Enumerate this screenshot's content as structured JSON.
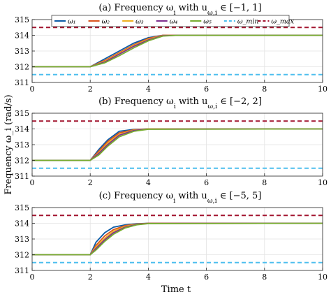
{
  "colors": {
    "omega_1": "#0b5ca6",
    "omega_2": "#d9531e",
    "omega_3": "#edb120",
    "omega_4": "#7e2f8e",
    "omega_5": "#77ac30",
    "omega_min": "#4dbeee",
    "omega_max": "#a2142f"
  },
  "figure": {
    "ylabel": "Frequency ω_i (rad/s)",
    "xlabel": "Time t"
  },
  "legend": {
    "placement": "top-center",
    "entries": [
      "ω₁",
      "ω₂",
      "ω₃",
      "ω₄",
      "ω₅",
      "ω_min",
      "ω_max"
    ]
  },
  "chart_data": [
    {
      "type": "line",
      "title": "(a) Frequency ω_i with u_{ω,i} ∈ [−1, 1]",
      "xlim": [
        0,
        10
      ],
      "ylim": [
        311,
        315
      ],
      "xticks": [
        0,
        2,
        4,
        6,
        8,
        10
      ],
      "yticks": [
        311,
        312,
        313,
        314,
        315
      ],
      "grid": true,
      "series": [
        {
          "name": "ω₁",
          "x": [
            0,
            2,
            2.5,
            3,
            3.5,
            4,
            4.5,
            5,
            10
          ],
          "y": [
            312,
            312,
            312.5,
            313.0,
            313.5,
            313.85,
            314.0,
            314.0,
            314.0
          ]
        },
        {
          "name": "ω₂",
          "x": [
            0,
            2,
            2.5,
            3,
            3.5,
            4,
            4.5,
            5,
            10
          ],
          "y": [
            312,
            312,
            312.4,
            312.9,
            313.4,
            313.8,
            314.0,
            314.0,
            314.0
          ]
        },
        {
          "name": "ω₃",
          "x": [
            0,
            2,
            2.5,
            3,
            3.5,
            4,
            4.5,
            5,
            10
          ],
          "y": [
            312,
            312,
            312.35,
            312.85,
            313.35,
            313.75,
            313.98,
            314.0,
            314.0
          ]
        },
        {
          "name": "ω₄",
          "x": [
            0,
            2,
            2.5,
            3,
            3.5,
            4,
            4.5,
            5,
            10
          ],
          "y": [
            312,
            312,
            312.3,
            312.8,
            313.3,
            313.7,
            313.97,
            314.0,
            314.0
          ]
        },
        {
          "name": "ω₅",
          "x": [
            0,
            2,
            2.5,
            3,
            3.5,
            4,
            4.5,
            5,
            10
          ],
          "y": [
            312,
            312,
            312.25,
            312.7,
            313.2,
            313.65,
            313.95,
            314.0,
            314.0
          ]
        },
        {
          "name": "ω_min",
          "x": [
            0,
            10
          ],
          "y": [
            311.5,
            311.5
          ]
        },
        {
          "name": "ω_max",
          "x": [
            0,
            10
          ],
          "y": [
            314.5,
            314.5
          ]
        }
      ]
    },
    {
      "type": "line",
      "title": "(b) Frequency ω_i with u_{ω,i} ∈ [−2, 2]",
      "xlim": [
        0,
        10
      ],
      "ylim": [
        311,
        315
      ],
      "xticks": [
        0,
        2,
        4,
        6,
        8,
        10
      ],
      "yticks": [
        311,
        312,
        313,
        314,
        315
      ],
      "grid": true,
      "series": [
        {
          "name": "ω₁",
          "x": [
            0,
            2,
            2.3,
            2.6,
            3,
            3.5,
            4,
            10
          ],
          "y": [
            312,
            312,
            312.7,
            313.3,
            313.85,
            313.97,
            314.0,
            314.0
          ]
        },
        {
          "name": "ω₂",
          "x": [
            0,
            2,
            2.3,
            2.6,
            3,
            3.5,
            4,
            10
          ],
          "y": [
            312,
            312,
            312.6,
            313.2,
            313.75,
            313.95,
            314.0,
            314.0
          ]
        },
        {
          "name": "ω₃",
          "x": [
            0,
            2,
            2.3,
            2.6,
            3,
            3.5,
            4,
            10
          ],
          "y": [
            312,
            312,
            312.5,
            313.1,
            313.65,
            313.92,
            314.0,
            314.0
          ]
        },
        {
          "name": "ω₄",
          "x": [
            0,
            2,
            2.3,
            2.6,
            3,
            3.5,
            4,
            10
          ],
          "y": [
            312,
            312,
            312.45,
            313.0,
            313.6,
            313.9,
            313.99,
            314.0
          ]
        },
        {
          "name": "ω₅",
          "x": [
            0,
            2,
            2.3,
            2.6,
            3,
            3.5,
            4,
            10
          ],
          "y": [
            312,
            312,
            312.35,
            312.9,
            313.5,
            313.85,
            313.98,
            314.0
          ]
        },
        {
          "name": "ω_min",
          "x": [
            0,
            10
          ],
          "y": [
            311.5,
            311.5
          ]
        },
        {
          "name": "ω_max",
          "x": [
            0,
            10
          ],
          "y": [
            314.5,
            314.5
          ]
        }
      ]
    },
    {
      "type": "line",
      "title": "(c) Frequency ω_i with u_{ω,i} ∈ [−5, 5]",
      "xlim": [
        0,
        10
      ],
      "ylim": [
        311,
        315
      ],
      "xticks": [
        0,
        2,
        4,
        6,
        8,
        10
      ],
      "yticks": [
        311,
        312,
        313,
        314,
        315
      ],
      "grid": true,
      "series": [
        {
          "name": "ω₁",
          "x": [
            0,
            2,
            2.2,
            2.5,
            2.8,
            3.2,
            3.6,
            4,
            10
          ],
          "y": [
            312,
            312,
            312.8,
            313.4,
            313.75,
            313.9,
            313.97,
            314.0,
            314.0
          ]
        },
        {
          "name": "ω₂",
          "x": [
            0,
            2,
            2.2,
            2.5,
            2.8,
            3.2,
            3.6,
            4,
            10
          ],
          "y": [
            312,
            312,
            312.6,
            313.2,
            313.6,
            313.85,
            313.95,
            314.0,
            314.0
          ]
        },
        {
          "name": "ω₃",
          "x": [
            0,
            2,
            2.2,
            2.5,
            2.8,
            3.2,
            3.6,
            4,
            10
          ],
          "y": [
            312,
            312,
            312.5,
            313.05,
            313.5,
            313.8,
            313.94,
            313.99,
            314.0
          ]
        },
        {
          "name": "ω₄",
          "x": [
            0,
            2,
            2.2,
            2.5,
            2.8,
            3.2,
            3.6,
            4,
            10
          ],
          "y": [
            312,
            312,
            312.4,
            312.95,
            313.4,
            313.75,
            313.92,
            313.99,
            314.0
          ]
        },
        {
          "name": "ω₅",
          "x": [
            0,
            2,
            2.2,
            2.5,
            2.8,
            3.2,
            3.6,
            4,
            10
          ],
          "y": [
            312,
            312,
            312.3,
            312.85,
            313.3,
            313.7,
            313.9,
            313.98,
            314.0
          ]
        },
        {
          "name": "ω_min",
          "x": [
            0,
            10
          ],
          "y": [
            311.5,
            311.5
          ]
        },
        {
          "name": "ω_max",
          "x": [
            0,
            10
          ],
          "y": [
            314.5,
            314.5
          ]
        }
      ]
    }
  ]
}
